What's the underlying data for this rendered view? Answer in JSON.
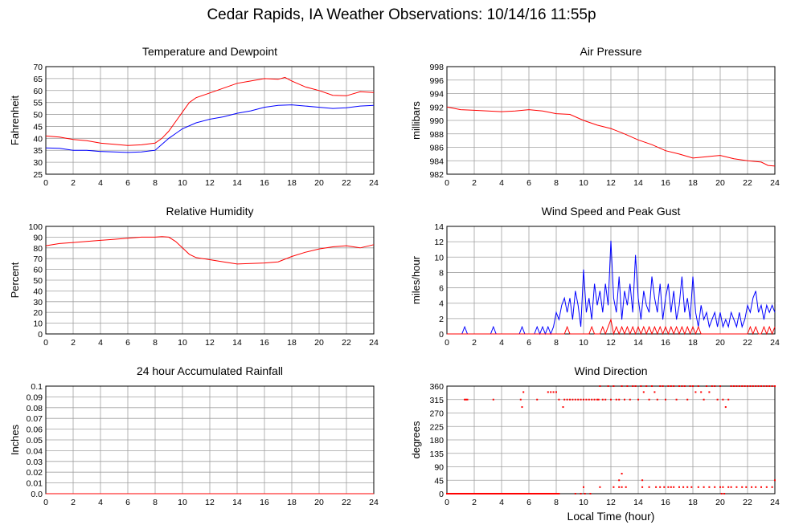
{
  "page": {
    "title": "Cedar Rapids, IA Weather Observations: 10/14/16 11:55p",
    "x_axis_title": "Local Time (hour)"
  },
  "colors": {
    "series_red": "#ff0000",
    "series_blue": "#0000ff",
    "grid": "#a0a0a0",
    "frame": "#000000"
  },
  "chart_data": [
    {
      "id": "temp",
      "type": "line",
      "title": "Temperature and Dewpoint",
      "ylabel": "Fahrenheit",
      "xlim": [
        0,
        24
      ],
      "ylim": [
        25,
        70
      ],
      "xticks": [
        "0",
        "2",
        "4",
        "6",
        "8",
        "10",
        "12",
        "14",
        "16",
        "18",
        "20",
        "22",
        "24"
      ],
      "yticks": [
        "25",
        "30",
        "35",
        "40",
        "45",
        "50",
        "55",
        "60",
        "65",
        "70"
      ],
      "grid": true,
      "series": [
        {
          "color": "red",
          "x": [
            0,
            1,
            2,
            3,
            4,
            5,
            6,
            7,
            8,
            8.5,
            9,
            9.5,
            10,
            10.5,
            11,
            12,
            13,
            14,
            15,
            16,
            17,
            17.5,
            18,
            19,
            20,
            21,
            22,
            23,
            24
          ],
          "y": [
            41,
            40.5,
            39.5,
            39,
            38,
            37.5,
            37,
            37.3,
            38,
            40,
            43,
            47,
            51,
            55,
            57,
            59,
            61,
            63,
            64,
            65,
            64.7,
            65.5,
            64,
            61.5,
            60,
            58,
            57.8,
            59.5,
            59.2
          ]
        },
        {
          "color": "blue",
          "x": [
            0,
            1,
            2,
            3,
            4,
            5,
            6,
            7,
            8,
            8.5,
            9,
            9.5,
            10,
            11,
            12,
            13,
            14,
            15,
            16,
            17,
            18,
            19,
            20,
            21,
            22,
            23,
            24
          ],
          "y": [
            36,
            35.8,
            35,
            35,
            34.5,
            34.3,
            34.1,
            34.3,
            35,
            37.5,
            40,
            42,
            44,
            46.5,
            48,
            49,
            50.5,
            51.5,
            53,
            53.8,
            54,
            53.5,
            53,
            52.5,
            52.8,
            53.5,
            53.8
          ]
        }
      ]
    },
    {
      "id": "pressure",
      "type": "line",
      "title": "Air Pressure",
      "ylabel": "millibars",
      "xlim": [
        0,
        24
      ],
      "ylim": [
        982,
        998
      ],
      "xticks": [
        "0",
        "2",
        "4",
        "6",
        "8",
        "10",
        "12",
        "14",
        "16",
        "18",
        "20",
        "22",
        "24"
      ],
      "yticks": [
        "982",
        "984",
        "986",
        "988",
        "990",
        "992",
        "994",
        "996",
        "998"
      ],
      "grid": true,
      "series": [
        {
          "color": "red",
          "x": [
            0,
            1,
            2,
            3,
            4,
            5,
            6,
            7,
            8,
            9,
            10,
            11,
            12,
            13,
            14,
            15,
            16,
            17,
            18,
            19,
            20,
            21,
            22,
            23,
            23.5,
            24
          ],
          "y": [
            992,
            991.6,
            991.5,
            991.4,
            991.3,
            991.4,
            991.6,
            991.4,
            991,
            990.9,
            990,
            989.3,
            988.8,
            988,
            987.1,
            986.4,
            985.5,
            985,
            984.4,
            984.6,
            984.8,
            984.3,
            984,
            983.8,
            983.3,
            983.2
          ]
        }
      ]
    },
    {
      "id": "humidity",
      "type": "line",
      "title": "Relative Humidity",
      "ylabel": "Percent",
      "xlim": [
        0,
        24
      ],
      "ylim": [
        0,
        100
      ],
      "xticks": [
        "0",
        "2",
        "4",
        "6",
        "8",
        "10",
        "12",
        "14",
        "16",
        "18",
        "20",
        "22",
        "24"
      ],
      "yticks": [
        "0",
        "10",
        "20",
        "30",
        "40",
        "50",
        "60",
        "70",
        "80",
        "90",
        "100"
      ],
      "grid": true,
      "series": [
        {
          "color": "red",
          "x": [
            0,
            1,
            2,
            3,
            4,
            5,
            6,
            7,
            8,
            8.5,
            9,
            9.5,
            10,
            10.5,
            11,
            12,
            13,
            14,
            15,
            16,
            17,
            18,
            19,
            20,
            21,
            22,
            23,
            24
          ],
          "y": [
            82,
            84,
            85,
            86,
            87,
            88,
            89,
            90,
            90,
            90.5,
            90,
            86,
            80,
            74,
            71,
            69,
            67,
            65,
            65.5,
            66,
            67,
            72,
            76,
            79,
            81,
            82,
            80,
            83
          ]
        }
      ]
    },
    {
      "id": "wind",
      "type": "line",
      "title": "Wind Speed and Peak Gust",
      "ylabel": "miles/hour",
      "xlim": [
        0,
        24
      ],
      "ylim": [
        0,
        15
      ],
      "xticks": [
        "0",
        "2",
        "4",
        "6",
        "8",
        "10",
        "12",
        "14",
        "16",
        "18",
        "20",
        "22",
        "24"
      ],
      "yticks": [
        "0",
        "2",
        "4",
        "6",
        "8",
        "10",
        "12",
        "14"
      ],
      "grid": true,
      "series": [
        {
          "color": "blue",
          "x": [
            0,
            1.1,
            1.3,
            1.5,
            3.2,
            3.4,
            3.6,
            5.3,
            5.5,
            5.7,
            6.4,
            6.6,
            6.8,
            7,
            7.2,
            7.4,
            7.6,
            7.8,
            8,
            8.2,
            8.4,
            8.6,
            8.8,
            9,
            9.2,
            9.4,
            9.6,
            9.8,
            10,
            10.2,
            10.4,
            10.6,
            10.8,
            11,
            11.2,
            11.4,
            11.6,
            11.8,
            12,
            12.2,
            12.4,
            12.6,
            12.8,
            13,
            13.2,
            13.4,
            13.6,
            13.8,
            14,
            14.2,
            14.4,
            14.6,
            14.8,
            15,
            15.2,
            15.4,
            15.6,
            15.8,
            16,
            16.2,
            16.4,
            16.6,
            16.8,
            17,
            17.2,
            17.4,
            17.6,
            17.8,
            18,
            18.2,
            18.4,
            18.6,
            18.8,
            19,
            19.2,
            19.4,
            19.6,
            19.8,
            20,
            20.2,
            20.4,
            20.6,
            20.8,
            21,
            21.2,
            21.4,
            21.6,
            21.8,
            22,
            22.2,
            22.4,
            22.6,
            22.8,
            23,
            23.2,
            23.4,
            23.6,
            23.8,
            24
          ],
          "y": [
            0,
            0,
            1,
            0,
            0,
            1,
            0,
            0,
            1,
            0,
            0,
            1,
            0,
            1,
            0,
            1,
            0,
            1,
            3,
            2,
            4,
            5,
            3,
            5,
            2,
            6,
            4,
            1,
            9,
            3,
            5,
            2,
            7,
            4,
            6,
            3,
            7,
            4,
            13,
            5,
            3,
            8,
            2,
            6,
            4,
            7,
            3,
            11,
            5,
            2,
            6,
            4,
            3,
            8,
            5,
            3,
            7,
            2,
            5,
            7,
            3,
            6,
            2,
            4,
            8,
            3,
            5,
            2,
            8,
            3,
            1,
            4,
            2,
            3,
            1,
            2,
            3,
            1,
            3,
            1,
            2,
            1,
            3,
            2,
            1,
            3,
            1,
            2,
            4,
            3,
            5,
            6,
            3,
            4,
            2,
            4,
            3,
            4,
            3
          ]
        },
        {
          "color": "red",
          "x": [
            0,
            8.6,
            8.8,
            9,
            10.4,
            10.6,
            10.8,
            11.2,
            11.4,
            11.6,
            11.8,
            12,
            12.2,
            12.4,
            12.6,
            12.8,
            13,
            13.2,
            13.4,
            13.6,
            13.8,
            14,
            14.2,
            14.4,
            14.6,
            14.8,
            15,
            15.2,
            15.4,
            15.6,
            15.8,
            16,
            16.2,
            16.4,
            16.6,
            16.8,
            17,
            17.2,
            17.4,
            17.6,
            17.8,
            18,
            18.2,
            18.4,
            18.6,
            18.8,
            22,
            22.2,
            22.4,
            22.6,
            22.8,
            23,
            23.2,
            23.4,
            23.6,
            23.8,
            24
          ],
          "y": [
            0,
            0,
            1,
            0,
            0,
            1,
            0,
            0,
            1,
            0,
            1,
            2,
            0,
            1,
            0,
            1,
            0,
            1,
            0,
            1,
            0,
            1,
            0,
            1,
            0,
            1,
            0,
            1,
            0,
            1,
            0,
            1,
            0,
            1,
            0,
            1,
            0,
            1,
            0,
            1,
            0,
            1,
            0,
            1,
            0,
            0,
            0,
            1,
            0,
            1,
            0,
            0,
            1,
            0,
            1,
            0,
            1
          ]
        }
      ]
    },
    {
      "id": "rain",
      "type": "line",
      "title": "24 hour Accumulated Rainfall",
      "ylabel": "Inches",
      "xlim": [
        0,
        24
      ],
      "ylim": [
        0,
        0.1
      ],
      "xticks": [
        "0",
        "2",
        "4",
        "6",
        "8",
        "10",
        "12",
        "14",
        "16",
        "18",
        "20",
        "22",
        "24"
      ],
      "yticks": [
        "0.0",
        "0.01",
        "0.02",
        "0.03",
        "0.04",
        "0.05",
        "0.06",
        "0.07",
        "0.08",
        "0.09",
        "0.1"
      ],
      "grid": true,
      "series": [
        {
          "color": "red",
          "x": [
            0,
            24
          ],
          "y": [
            0,
            0
          ]
        }
      ]
    },
    {
      "id": "direction",
      "type": "scatter",
      "title": "Wind Direction",
      "ylabel": "degrees",
      "xlim": [
        0,
        24
      ],
      "ylim": [
        0,
        360
      ],
      "xticks": [
        "0",
        "2",
        "4",
        "6",
        "8",
        "10",
        "12",
        "14",
        "16",
        "18",
        "20",
        "22",
        "24"
      ],
      "yticks": [
        "0",
        "45",
        "90",
        "135",
        "180",
        "225",
        "270",
        "315",
        "360"
      ],
      "grid": true,
      "series": [
        {
          "color": "red",
          "dense_zero": [
            0,
            8.2
          ],
          "x": [
            1.3,
            1.4,
            1.5,
            3.4,
            5.4,
            5.6,
            5.5,
            6.6,
            7.4,
            7.6,
            7.8,
            8,
            8.2,
            8.5,
            8.6,
            8.8,
            9,
            9.2,
            9.4,
            9.6,
            9.8,
            10,
            10.2,
            10.4,
            10.6,
            10.8,
            11,
            11.1,
            11.2,
            11.4,
            11.6,
            11.8,
            12,
            12.2,
            12.4,
            12.6,
            12.8,
            13,
            13.2,
            13.4,
            13.6,
            13.8,
            14,
            14.2,
            14.4,
            14.6,
            14.8,
            15,
            15.2,
            15.4,
            15.6,
            15.8,
            16,
            16.2,
            16.4,
            16.6,
            16.8,
            17,
            17.2,
            17.4,
            17.6,
            17.8,
            18,
            18.2,
            18.4,
            18.6,
            18.8,
            19,
            19.2,
            19.4,
            19.6,
            19.8,
            20,
            20.2,
            20.4,
            20.6,
            20.8,
            21,
            21.2,
            21.4,
            21.6,
            21.8,
            22,
            22.2,
            22.4,
            22.6,
            22.8,
            23,
            23.2,
            23.4,
            23.6,
            23.8,
            24,
            9.4,
            9.8,
            10,
            10.1,
            10.5,
            11.2,
            12.2,
            12.6,
            12.8,
            13.1,
            14.3,
            14.8,
            15.3,
            15.6,
            15.9,
            16.2,
            16.4,
            16.6,
            17,
            17.3,
            17.6,
            17.9,
            18.4,
            18.8,
            19.2,
            19.6,
            20,
            20.2,
            20.6,
            20.8,
            21.2,
            21.6,
            21.9,
            22.3,
            22.6,
            23,
            23.4,
            23.8,
            24,
            12.6,
            12.8,
            14.3,
            20.1,
            20.3
          ],
          "y": [
            315,
            315,
            315,
            315,
            315,
            340,
            290,
            315,
            340,
            340,
            340,
            340,
            315,
            290,
            315,
            315,
            315,
            315,
            315,
            315,
            315,
            315,
            315,
            315,
            315,
            315,
            315,
            315,
            360,
            315,
            315,
            360,
            315,
            360,
            315,
            315,
            360,
            315,
            360,
            315,
            360,
            360,
            315,
            360,
            340,
            360,
            315,
            360,
            340,
            315,
            360,
            360,
            315,
            360,
            360,
            360,
            315,
            360,
            360,
            360,
            315,
            360,
            360,
            340,
            360,
            340,
            315,
            360,
            340,
            360,
            360,
            315,
            360,
            315,
            290,
            315,
            360,
            360,
            360,
            360,
            360,
            360,
            360,
            360,
            360,
            360,
            360,
            360,
            360,
            360,
            360,
            360,
            360,
            0,
            0,
            22,
            0,
            0,
            22,
            22,
            22,
            22,
            22,
            22,
            22,
            22,
            22,
            22,
            22,
            22,
            22,
            22,
            22,
            22,
            22,
            22,
            22,
            22,
            22,
            22,
            22,
            22,
            22,
            22,
            22,
            22,
            22,
            22,
            22,
            22,
            22,
            45,
            45,
            67,
            45,
            0,
            0
          ]
        }
      ]
    }
  ]
}
